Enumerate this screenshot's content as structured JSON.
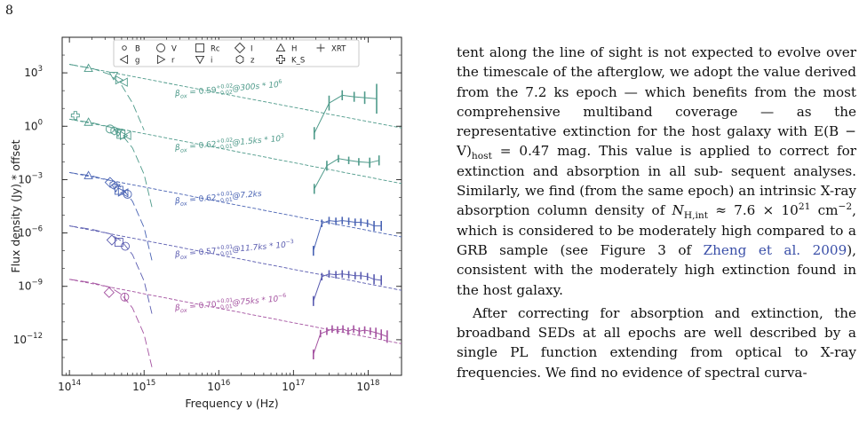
{
  "page": {
    "number": "8"
  },
  "figure": {
    "legend": [
      {
        "symbol": "circle-small",
        "label": "B"
      },
      {
        "symbol": "circle",
        "label": "V"
      },
      {
        "symbol": "square",
        "label": "Rc"
      },
      {
        "symbol": "diamond",
        "label": "I"
      },
      {
        "symbol": "triangle-up",
        "label": "H"
      },
      {
        "symbol": "plus",
        "label": "XRT"
      },
      {
        "symbol": "triangle-left",
        "label": "g"
      },
      {
        "symbol": "triangle-right",
        "label": "r"
      },
      {
        "symbol": "triangle-down",
        "label": "i"
      },
      {
        "symbol": "hexagon",
        "label": "z"
      },
      {
        "symbol": "cross",
        "label": "K_S"
      }
    ]
  },
  "chart_data": {
    "type": "line",
    "xlabel": "Frequency ν (Hz)",
    "ylabel": "Flux density (Jy) * offset",
    "x_scale": "log",
    "y_scale": "log",
    "xlim": [
      80000000000000.0,
      2.8e+18
    ],
    "ylim": [
      1e-14,
      100000.0
    ],
    "x_ticks": [
      {
        "value": 100000000000000.0,
        "label": "10^14"
      },
      {
        "value": 1000000000000000.0,
        "label": "10^15"
      },
      {
        "value": 1e+16,
        "label": "10^16"
      },
      {
        "value": 1e+17,
        "label": "10^17"
      },
      {
        "value": 1e+18,
        "label": "10^18"
      }
    ],
    "y_ticks": [
      {
        "value": 1000.0,
        "label": "10^3"
      },
      {
        "value": 1.0,
        "label": "10^0"
      },
      {
        "value": 0.001,
        "label": "10^-3"
      },
      {
        "value": 1e-06,
        "label": "10^-6"
      },
      {
        "value": 1e-09,
        "label": "10^-9"
      },
      {
        "value": 1e-12,
        "label": "10^-12"
      }
    ],
    "series": [
      {
        "color": "#4e9a8a",
        "pl": {
          "x": [
            100000000000000.0,
            2.8e+18
          ],
          "y": [
            3000,
            0.8
          ]
        },
        "ext": {
          "x": [
            100000000000000.0,
            200000000000000.0,
            350000000000000.0,
            500000000000000.0,
            700000000000000.0,
            1000000000000000.0
          ],
          "y": [
            3000,
            1800,
            800,
            200,
            20,
            0.6
          ]
        },
        "points": [
          {
            "m": "triangle-up",
            "x": 180000000000000.0,
            "y": 1800
          },
          {
            "m": "triangle-down",
            "x": 390000000000000.0,
            "y": 700
          },
          {
            "m": "triangle-right",
            "x": 460000000000000.0,
            "y": 400
          },
          {
            "m": "triangle-left",
            "x": 540000000000000.0,
            "y": 300
          }
        ],
        "xray": {
          "x": [
            1.9e+17,
            3e+17,
            4.5e+17,
            6.5e+17,
            9e+17,
            1.3e+18
          ],
          "y": [
            0.4,
            20,
            55,
            45,
            40,
            35
          ],
          "err": [
            0.5,
            0.6,
            0.4,
            0.4,
            0.5,
            1.2
          ]
        }
      },
      {
        "color": "#4e9a8a",
        "pl": {
          "x": [
            100000000000000.0,
            2.8e+18
          ],
          "y": [
            2.5,
            0.0006
          ]
        },
        "ext": {
          "x": [
            100000000000000.0,
            200000000000000.0,
            350000000000000.0,
            500000000000000.0,
            700000000000000.0,
            1000000000000000.0,
            1300000000000000.0
          ],
          "y": [
            2.5,
            1.6,
            0.9,
            0.35,
            0.06,
            0.002,
            2e-05
          ]
        },
        "points": [
          {
            "m": "cross",
            "x": 120000000000000.0,
            "y": 4
          },
          {
            "m": "triangle-up",
            "x": 180000000000000.0,
            "y": 1.7
          },
          {
            "m": "circle",
            "x": 350000000000000.0,
            "y": 0.7
          },
          {
            "m": "hexagon",
            "x": 400000000000000.0,
            "y": 0.55
          },
          {
            "m": "triangle-down",
            "x": 450000000000000.0,
            "y": 0.45
          },
          {
            "m": "square",
            "x": 490000000000000.0,
            "y": 0.35
          },
          {
            "m": "triangle-right",
            "x": 530000000000000.0,
            "y": 0.3
          },
          {
            "m": "triangle-left",
            "x": 600000000000000.0,
            "y": 0.3
          }
        ],
        "xray": {
          "x": [
            1.9e+17,
            2.8e+17,
            4e+17,
            5.5e+17,
            7.5e+17,
            1.05e+18,
            1.4e+18
          ],
          "y": [
            0.0003,
            0.006,
            0.015,
            0.012,
            0.01,
            0.009,
            0.012
          ],
          "err": [
            0.4,
            0.4,
            0.3,
            0.3,
            0.3,
            0.4,
            0.4
          ]
        }
      },
      {
        "color": "#4a64b4",
        "pl": {
          "x": [
            100000000000000.0,
            2.8e+18
          ],
          "y": [
            0.0025,
            6e-07
          ]
        },
        "ext": {
          "x": [
            100000000000000.0,
            200000000000000.0,
            350000000000000.0,
            500000000000000.0,
            700000000000000.0,
            1000000000000000.0,
            1300000000000000.0
          ],
          "y": [
            0.0025,
            0.0016,
            0.0009,
            0.00035,
            6e-05,
            2e-06,
            2e-08
          ]
        },
        "points": [
          {
            "m": "triangle-up",
            "x": 180000000000000.0,
            "y": 0.0017
          },
          {
            "m": "diamond",
            "x": 350000000000000.0,
            "y": 0.0007
          },
          {
            "m": "hexagon",
            "x": 390000000000000.0,
            "y": 0.0005
          },
          {
            "m": "triangle-down",
            "x": 420000000000000.0,
            "y": 0.00035
          },
          {
            "m": "square",
            "x": 460000000000000.0,
            "y": 0.00025
          },
          {
            "m": "triangle-right",
            "x": 500000000000000.0,
            "y": 0.0002
          },
          {
            "m": "triangle-left",
            "x": 550000000000000.0,
            "y": 0.00018
          },
          {
            "m": "circle",
            "x": 600000000000000.0,
            "y": 0.00015
          }
        ],
        "xray": {
          "x": [
            1.85e+17,
            2.4e+17,
            3e+17,
            3.7e+17,
            4.5e+17,
            5.5e+17,
            6.7e+17,
            8e+17,
            9.8e+17,
            1.2e+18,
            1.5e+18
          ],
          "y": [
            1e-07,
            3.5e-06,
            5e-06,
            4.5e-06,
            5e-06,
            4.5e-06,
            4e-06,
            4e-06,
            3.5e-06,
            2.5e-06,
            2.5e-06
          ],
          "err": [
            0.4,
            0.3,
            0.3,
            0.3,
            0.3,
            0.3,
            0.3,
            0.3,
            0.3,
            0.4,
            0.4
          ]
        }
      },
      {
        "color": "#5a5cb0",
        "pl": {
          "x": [
            100000000000000.0,
            2.8e+18
          ],
          "y": [
            2.5e-06,
            6e-10
          ]
        },
        "ext": {
          "x": [
            100000000000000.0,
            200000000000000.0,
            350000000000000.0,
            500000000000000.0,
            700000000000000.0,
            1000000000000000.0,
            1300000000000000.0
          ],
          "y": [
            2.5e-06,
            1.6e-06,
            9e-07,
            3.5e-07,
            6e-08,
            2e-09,
            2e-11
          ]
        },
        "points": [
          {
            "m": "diamond",
            "x": 370000000000000.0,
            "y": 4e-07
          },
          {
            "m": "square",
            "x": 460000000000000.0,
            "y": 3e-07
          },
          {
            "m": "circle",
            "x": 560000000000000.0,
            "y": 1.8e-07
          }
        ],
        "xray": {
          "x": [
            1.85e+17,
            2.4e+17,
            3e+17,
            3.7e+17,
            4.5e+17,
            5.5e+17,
            6.7e+17,
            8e+17,
            9.8e+17,
            1.2e+18,
            1.5e+18
          ],
          "y": [
            1.5e-10,
            3.5e-09,
            5e-09,
            4.5e-09,
            5e-09,
            4.5e-09,
            4e-09,
            4e-09,
            3.5e-09,
            2.5e-09,
            2.2e-09
          ],
          "err": [
            0.4,
            0.3,
            0.3,
            0.3,
            0.3,
            0.3,
            0.3,
            0.3,
            0.3,
            0.4,
            0.4
          ]
        }
      },
      {
        "color": "#a452a0",
        "pl": {
          "x": [
            100000000000000.0,
            2.8e+18
          ],
          "y": [
            2.5e-09,
            6e-13
          ]
        },
        "ext": {
          "x": [
            100000000000000.0,
            200000000000000.0,
            350000000000000.0,
            500000000000000.0,
            700000000000000.0,
            1000000000000000.0,
            1300000000000000.0
          ],
          "y": [
            2.5e-09,
            1.6e-09,
            9e-10,
            3.5e-10,
            6e-11,
            2e-12,
            2e-14
          ]
        },
        "points": [
          {
            "m": "diamond",
            "x": 340000000000000.0,
            "y": 4.5e-10
          },
          {
            "m": "plus-circle",
            "x": 550000000000000.0,
            "y": 2.5e-10
          }
        ],
        "xray": {
          "x": [
            1.85e+17,
            2.3e+17,
            2.8e+17,
            3.3e+17,
            3.9e+17,
            4.6e+17,
            5.4e+17,
            6.4e+17,
            7.6e+17,
            9e+17,
            1.07e+18,
            1.27e+18,
            1.5e+18,
            1.8e+18
          ],
          "y": [
            1.5e-13,
            2.2e-12,
            3e-12,
            4e-12,
            3.5e-12,
            4e-12,
            3e-12,
            4e-12,
            3e-12,
            3.5e-12,
            3e-12,
            2.5e-12,
            2e-12,
            1.5e-12
          ],
          "err": [
            0.4,
            0.3,
            0.3,
            0.3,
            0.3,
            0.3,
            0.3,
            0.3,
            0.3,
            0.3,
            0.3,
            0.4,
            0.4,
            0.5
          ]
        }
      }
    ],
    "annotations": [
      {
        "series": 0,
        "x": 2600000000000000.0,
        "y": 50,
        "base": "β",
        "sub": "ox",
        "eq": " = 0.59",
        "sup": "+0.02",
        "lower": "−0.02",
        "tail": "@300s * 10",
        "tail_sup": "6"
      },
      {
        "series": 1,
        "x": 2600000000000000.0,
        "y": 0.045,
        "base": "β",
        "sub": "ox",
        "eq": " = 0.62",
        "sup": "+0.02",
        "lower": "−0.01",
        "tail": "@1.5ks * 10",
        "tail_sup": "3"
      },
      {
        "series": 2,
        "x": 2600000000000000.0,
        "y": 4.5e-05,
        "base": "β",
        "sub": "ox",
        "eq": " = 0.62",
        "sup": "+0.01",
        "lower": "−0.01",
        "tail": "@7.2ks",
        "tail_sup": ""
      },
      {
        "series": 3,
        "x": 2600000000000000.0,
        "y": 4.5e-08,
        "base": "β",
        "sub": "ox",
        "eq": " = 0.57",
        "sup": "+0.01",
        "lower": "−0.01",
        "tail": "@11.7ks * 10",
        "tail_sup": "−3"
      },
      {
        "series": 4,
        "x": 2600000000000000.0,
        "y": 4.5e-11,
        "base": "β",
        "sub": "ox",
        "eq": " = 0.70",
        "sup": "+0.01",
        "lower": "−0.01",
        "tail": "@75ks * 10",
        "tail_sup": "−6"
      }
    ]
  },
  "body_text": {
    "p1_lines": [
      "tent along the line of sight is not expected to evolve",
      "over the timescale of the afterglow, we adopt the",
      "value derived from the 7.2 ks epoch — which benefits",
      "from the most comprehensive multiband coverage —",
      "as the representative extinction for the host galaxy",
      "with E(B − V)host = 0.47 mag. This value is applied",
      "to correct for extinction and absorption in all sub-",
      "sequent analyses. Similarly, we find (from the same",
      "epoch) an intrinsic X-ray absorption column density",
      "of NH,int ≈ 7.6 × 1021 cm−2, which is considered to",
      "be moderately high compared to a GRB sample (see",
      "Figure 3 of Zheng et al. 2009), consistent with the",
      "moderately high extinction found in the host galaxy."
    ],
    "p2_lines": [
      "After correcting for absorption and extinction, the",
      "broadband SEDs at all epochs are well described by",
      "a single PL function extending from optical to X-ray",
      "frequencies. We find no evidence of spectral curva-"
    ],
    "cite": "Zheng et al. 2009"
  }
}
